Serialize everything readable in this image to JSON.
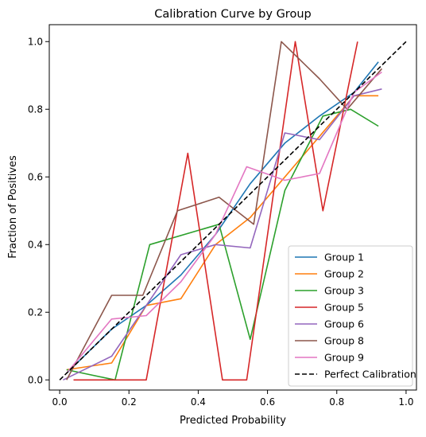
{
  "chart_data": {
    "type": "line",
    "title": "Calibration Curve by Group",
    "xlabel": "Predicted Probability",
    "ylabel": "Fraction of Positives",
    "xlim": [
      -0.03,
      1.03
    ],
    "ylim": [
      -0.03,
      1.05
    ],
    "xticks": [
      0.0,
      0.2,
      0.4,
      0.6,
      0.8,
      1.0
    ],
    "xtick_labels": [
      "0.0",
      "0.2",
      "0.4",
      "0.6",
      "0.8",
      "1.0"
    ],
    "yticks": [
      0.0,
      0.2,
      0.4,
      0.6,
      0.8,
      1.0
    ],
    "ytick_labels": [
      "0.0",
      "0.2",
      "0.4",
      "0.6",
      "0.8",
      "1.0"
    ],
    "grid": false,
    "legend_position": "lower-right",
    "series": [
      {
        "name": "Group 1",
        "color": "#1f77b4",
        "x": [
          0.02,
          0.15,
          0.25,
          0.35,
          0.45,
          0.55,
          0.65,
          0.75,
          0.85,
          0.92
        ],
        "y": [
          0.02,
          0.15,
          0.22,
          0.31,
          0.43,
          0.58,
          0.7,
          0.78,
          0.85,
          0.94
        ]
      },
      {
        "name": "Group 2",
        "color": "#ff7f0e",
        "x": [
          0.02,
          0.15,
          0.25,
          0.35,
          0.45,
          0.55,
          0.65,
          0.75,
          0.85,
          0.92
        ],
        "y": [
          0.03,
          0.05,
          0.22,
          0.24,
          0.4,
          0.48,
          0.6,
          0.72,
          0.84,
          0.84
        ]
      },
      {
        "name": "Group 3",
        "color": "#2ca02c",
        "x": [
          0.02,
          0.16,
          0.26,
          0.46,
          0.55,
          0.65,
          0.76,
          0.84,
          0.92
        ],
        "y": [
          0.03,
          0.0,
          0.4,
          0.46,
          0.12,
          0.56,
          0.78,
          0.8,
          0.75
        ]
      },
      {
        "name": "Group 5",
        "color": "#d62728",
        "x": [
          0.04,
          0.16,
          0.25,
          0.37,
          0.47,
          0.54,
          0.68,
          0.76,
          0.86
        ],
        "y": [
          0.0,
          0.0,
          0.0,
          0.67,
          0.0,
          0.0,
          1.0,
          0.5,
          1.0
        ]
      },
      {
        "name": "Group 6",
        "color": "#9467bd",
        "x": [
          0.01,
          0.15,
          0.25,
          0.35,
          0.45,
          0.55,
          0.65,
          0.75,
          0.85,
          0.93
        ],
        "y": [
          0.0,
          0.07,
          0.22,
          0.37,
          0.4,
          0.39,
          0.73,
          0.71,
          0.84,
          0.86
        ]
      },
      {
        "name": "Group 8",
        "color": "#8c564b",
        "x": [
          0.02,
          0.15,
          0.24,
          0.34,
          0.46,
          0.56,
          0.64,
          0.75,
          0.83,
          0.93
        ],
        "y": [
          0.0,
          0.25,
          0.25,
          0.5,
          0.54,
          0.46,
          1.0,
          0.89,
          0.8,
          0.92
        ]
      },
      {
        "name": "Group 9",
        "color": "#e377c2",
        "x": [
          0.02,
          0.15,
          0.25,
          0.35,
          0.45,
          0.54,
          0.65,
          0.75,
          0.85,
          0.93
        ],
        "y": [
          0.02,
          0.18,
          0.19,
          0.29,
          0.43,
          0.63,
          0.59,
          0.61,
          0.85,
          0.91
        ]
      },
      {
        "name": "Perfect Calibration",
        "color": "#000000",
        "dashed": true,
        "x": [
          0.0,
          1.0
        ],
        "y": [
          0.0,
          1.0
        ]
      }
    ]
  }
}
